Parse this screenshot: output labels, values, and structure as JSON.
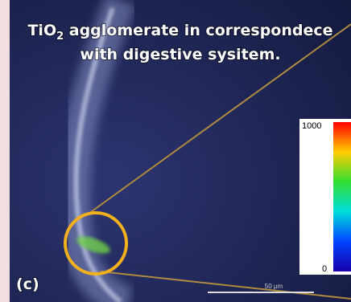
{
  "title": {
    "formula": "TiO",
    "subscript": "2",
    "line1_rest": " agglomerate in correspondece",
    "line2": "with digestive sysitem."
  },
  "colorbar": {
    "max": "1000",
    "min": "0"
  },
  "panel_label": "(c)",
  "scale_bar": "50 µm"
}
